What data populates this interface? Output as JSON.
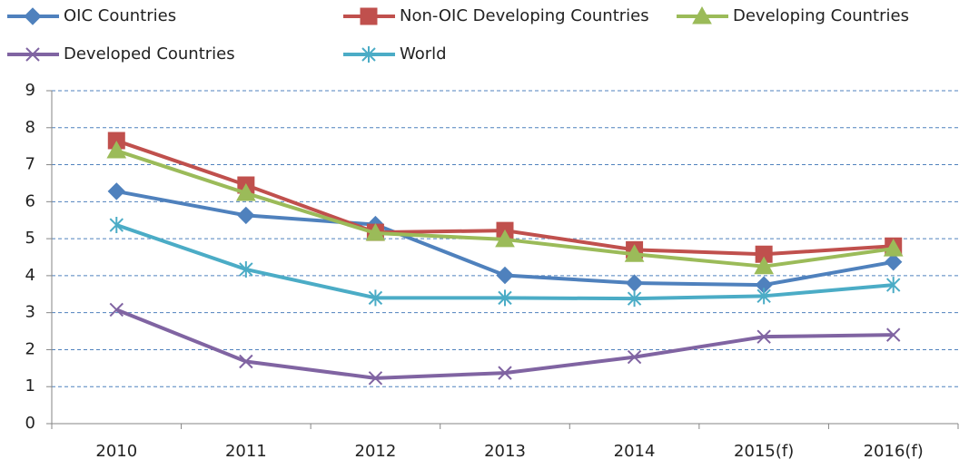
{
  "chart_data": {
    "type": "line",
    "categories": [
      "2010",
      "2011",
      "2012",
      "2013",
      "2014",
      "2015(f)",
      "2016(f)"
    ],
    "series": [
      {
        "name": "OIC Countries",
        "color": "#4f81bd",
        "marker": "diamond",
        "values": [
          6.28,
          5.63,
          5.38,
          4.01,
          3.8,
          3.75,
          4.37
        ]
      },
      {
        "name": "Non-OIC Developing Countries",
        "color": "#c0504d",
        "marker": "square",
        "values": [
          7.65,
          6.45,
          5.17,
          5.22,
          4.7,
          4.58,
          4.8
        ]
      },
      {
        "name": "Developing Countries",
        "color": "#9bbb59",
        "marker": "triangle",
        "values": [
          7.38,
          6.23,
          5.15,
          4.98,
          4.58,
          4.25,
          4.73
        ]
      },
      {
        "name": "Developed Countries",
        "color": "#8064a2",
        "marker": "x",
        "values": [
          3.08,
          1.68,
          1.23,
          1.37,
          1.8,
          2.35,
          2.4
        ]
      },
      {
        "name": "World",
        "color": "#4bacc6",
        "marker": "asterisk",
        "values": [
          5.37,
          4.17,
          3.4,
          3.4,
          3.38,
          3.45,
          3.75
        ]
      }
    ],
    "ylim": [
      0,
      9
    ],
    "yticks": [
      0,
      1,
      2,
      3,
      4,
      5,
      6,
      7,
      8,
      9
    ],
    "grid": true,
    "legend": "top"
  }
}
